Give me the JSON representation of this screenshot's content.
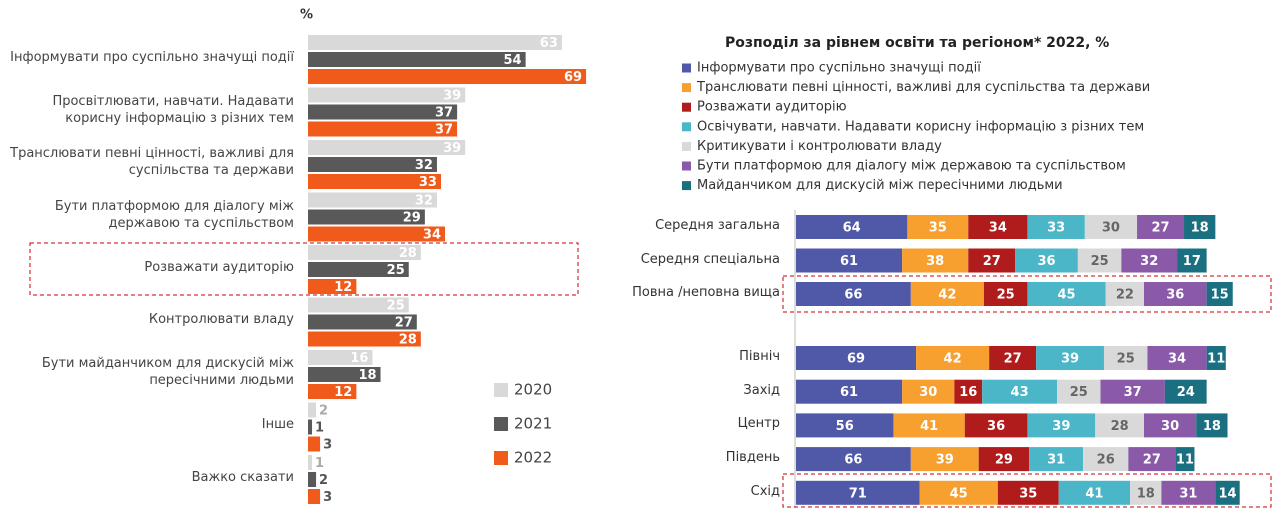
{
  "chart_data": [
    {
      "type": "bar",
      "orientation": "horizontal",
      "unit_label": "%",
      "categories": [
        "Інформувати про суспільно значущі події",
        "Просвітлювати, навчати. Надавати корисну інформацію з різних тем",
        "Транслювати певні цінності, важливі для суспільства та держави",
        "Бути платформою для діалогу між державою та суспільством",
        "Розважати аудиторію",
        "Контролювати владу",
        "Бути майданчиком для дискусій між пересічними людьми",
        "Інше",
        "Важко сказати"
      ],
      "series": [
        {
          "name": "2020",
          "color": "#d9d9d9",
          "values": [
            63,
            39,
            39,
            32,
            28,
            25,
            16,
            2,
            1
          ]
        },
        {
          "name": "2021",
          "color": "#595959",
          "values": [
            54,
            37,
            32,
            29,
            25,
            27,
            18,
            1,
            2
          ]
        },
        {
          "name": "2022",
          "color": "#f05a1a",
          "values": [
            69,
            37,
            33,
            34,
            12,
            28,
            12,
            3,
            3
          ]
        }
      ]
    },
    {
      "type": "stacked_bar",
      "orientation": "horizontal",
      "title": "Розподіл за рівнем освіти та регіоном* 2022, %",
      "categories": [
        "Середня загальна",
        "Середня спеціальна",
        "Повна /неповна  вища",
        "Північ",
        "Захід",
        "Центр",
        "Південь",
        "Схід"
      ],
      "series": [
        {
          "name": "Інформувати про суспільно значущі події",
          "color": "#5058a8",
          "values": [
            64,
            61,
            66,
            69,
            61,
            56,
            66,
            71
          ]
        },
        {
          "name": "Транслювати певні цінності, важливі для суспільства та держави",
          "color": "#f7a030",
          "values": [
            35,
            38,
            42,
            42,
            30,
            41,
            39,
            45
          ]
        },
        {
          "name": "Розважати аудиторію",
          "color": "#b01c1c",
          "values": [
            34,
            27,
            25,
            27,
            16,
            36,
            29,
            35
          ]
        },
        {
          "name": "Освічувати, навчати. Надавати корисну інформацію з різних тем",
          "color": "#4bb6c8",
          "values": [
            33,
            36,
            45,
            39,
            43,
            39,
            31,
            41
          ]
        },
        {
          "name": "Критикувати і контролювати владу",
          "color": "#d9d9d9",
          "values": [
            30,
            25,
            22,
            25,
            25,
            28,
            26,
            18
          ]
        },
        {
          "name": "Бути платформою для діалогу між державою та суспільством",
          "color": "#8a5aa8",
          "values": [
            27,
            32,
            36,
            34,
            37,
            30,
            27,
            31
          ]
        },
        {
          "name": "Майданчиком для дискусій між пересічними людьми",
          "color": "#1a7080",
          "values": [
            18,
            17,
            15,
            11,
            24,
            18,
            11,
            14
          ]
        }
      ]
    }
  ]
}
